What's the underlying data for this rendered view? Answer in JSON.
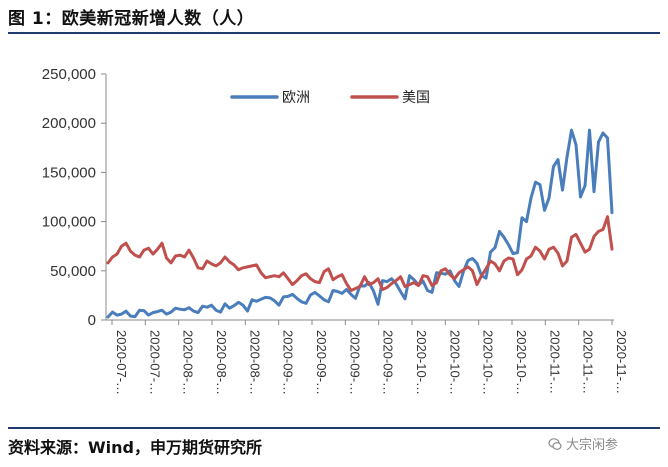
{
  "figure": {
    "title": "图 1：欧美新冠新增人数（人）",
    "source": "资料来源：Wind，申万期货研究所",
    "watermark": "大宗闲参"
  },
  "chart_data": {
    "type": "line",
    "title": "图 1：欧美新冠新增人数（人）",
    "xlabel": "",
    "ylabel": "",
    "ylim": [
      0,
      250000
    ],
    "yticks": [
      0,
      50000,
      100000,
      150000,
      200000,
      250000
    ],
    "ytick_labels": [
      "0",
      "50,000",
      "100,000",
      "150,000",
      "200,000",
      "250,000"
    ],
    "xtick_labels": [
      "2020-07-…",
      "2020-07-…",
      "2020-08-…",
      "2020-08-…",
      "2020-08-…",
      "2020-09-…",
      "2020-09-…",
      "2020-09-…",
      "2020-09-…",
      "2020-10-…",
      "2020-10-…",
      "2020-10-…",
      "2020-10-…",
      "2020-11-…",
      "2020-11-…",
      "2020-11-…"
    ],
    "grid": false,
    "legend": "top-center",
    "series": [
      {
        "name": "欧洲",
        "color": "#4a7ebb",
        "values": [
          3000,
          8000,
          5000,
          6000,
          9000,
          4000,
          3500,
          10000,
          9500,
          5000,
          7500,
          8500,
          10000,
          6000,
          8000,
          12000,
          11000,
          10500,
          12500,
          9000,
          7500,
          14000,
          13000,
          15000,
          10000,
          8000,
          16500,
          12000,
          14500,
          18000,
          15000,
          9000,
          20500,
          19000,
          21000,
          23000,
          22500,
          19500,
          15000,
          23500,
          24000,
          26000,
          22000,
          18500,
          17000,
          25500,
          28000,
          24500,
          20500,
          18500,
          30000,
          29000,
          27000,
          31000,
          26000,
          22000,
          35000,
          34500,
          38000,
          29500,
          16000,
          40000,
          39000,
          42000,
          37000,
          29000,
          21500,
          45000,
          41000,
          35500,
          39500,
          30000,
          28000,
          48000,
          47500,
          46500,
          50000,
          40000,
          34000,
          49500,
          60500,
          62500,
          57500,
          45000,
          42500,
          69000,
          73500,
          90000,
          84000,
          76500,
          67500,
          68500,
          104000,
          100000,
          124000,
          140000,
          137500,
          111500,
          124000,
          156000,
          163000,
          132000,
          165500,
          193000,
          178000,
          125000,
          136500,
          193000,
          130500,
          181000,
          190000,
          185000,
          109000
        ]
      },
      {
        "name": "美国",
        "color": "#c0504d",
        "values": [
          58000,
          64000,
          67000,
          75000,
          78000,
          70000,
          66000,
          64000,
          71000,
          73000,
          67000,
          72000,
          78000,
          63000,
          58000,
          65000,
          66000,
          64000,
          71000,
          63000,
          53000,
          52000,
          60000,
          57000,
          55000,
          58000,
          64000,
          59000,
          56000,
          51000,
          53000,
          54000,
          55000,
          56000,
          48000,
          43000,
          44000,
          45000,
          44000,
          48000,
          42000,
          36000,
          40000,
          45000,
          47000,
          42000,
          39000,
          38000,
          49000,
          52000,
          41000,
          44000,
          46000,
          37000,
          30000,
          32000,
          34000,
          44000,
          36000,
          38000,
          42000,
          31000,
          33000,
          37000,
          40000,
          44000,
          34000,
          36000,
          38000,
          35000,
          45000,
          44000,
          35000,
          38000,
          50000,
          52000,
          46000,
          42000,
          48000,
          51000,
          54000,
          50000,
          36000,
          45000,
          52000,
          60000,
          57000,
          50000,
          60000,
          63000,
          62000,
          46000,
          51000,
          62000,
          65000,
          74000,
          70000,
          62000,
          72000,
          74000,
          68000,
          55000,
          60000,
          84000,
          87000,
          78000,
          69000,
          72000,
          85000,
          90000,
          92000,
          105000,
          72000
        ]
      }
    ]
  }
}
